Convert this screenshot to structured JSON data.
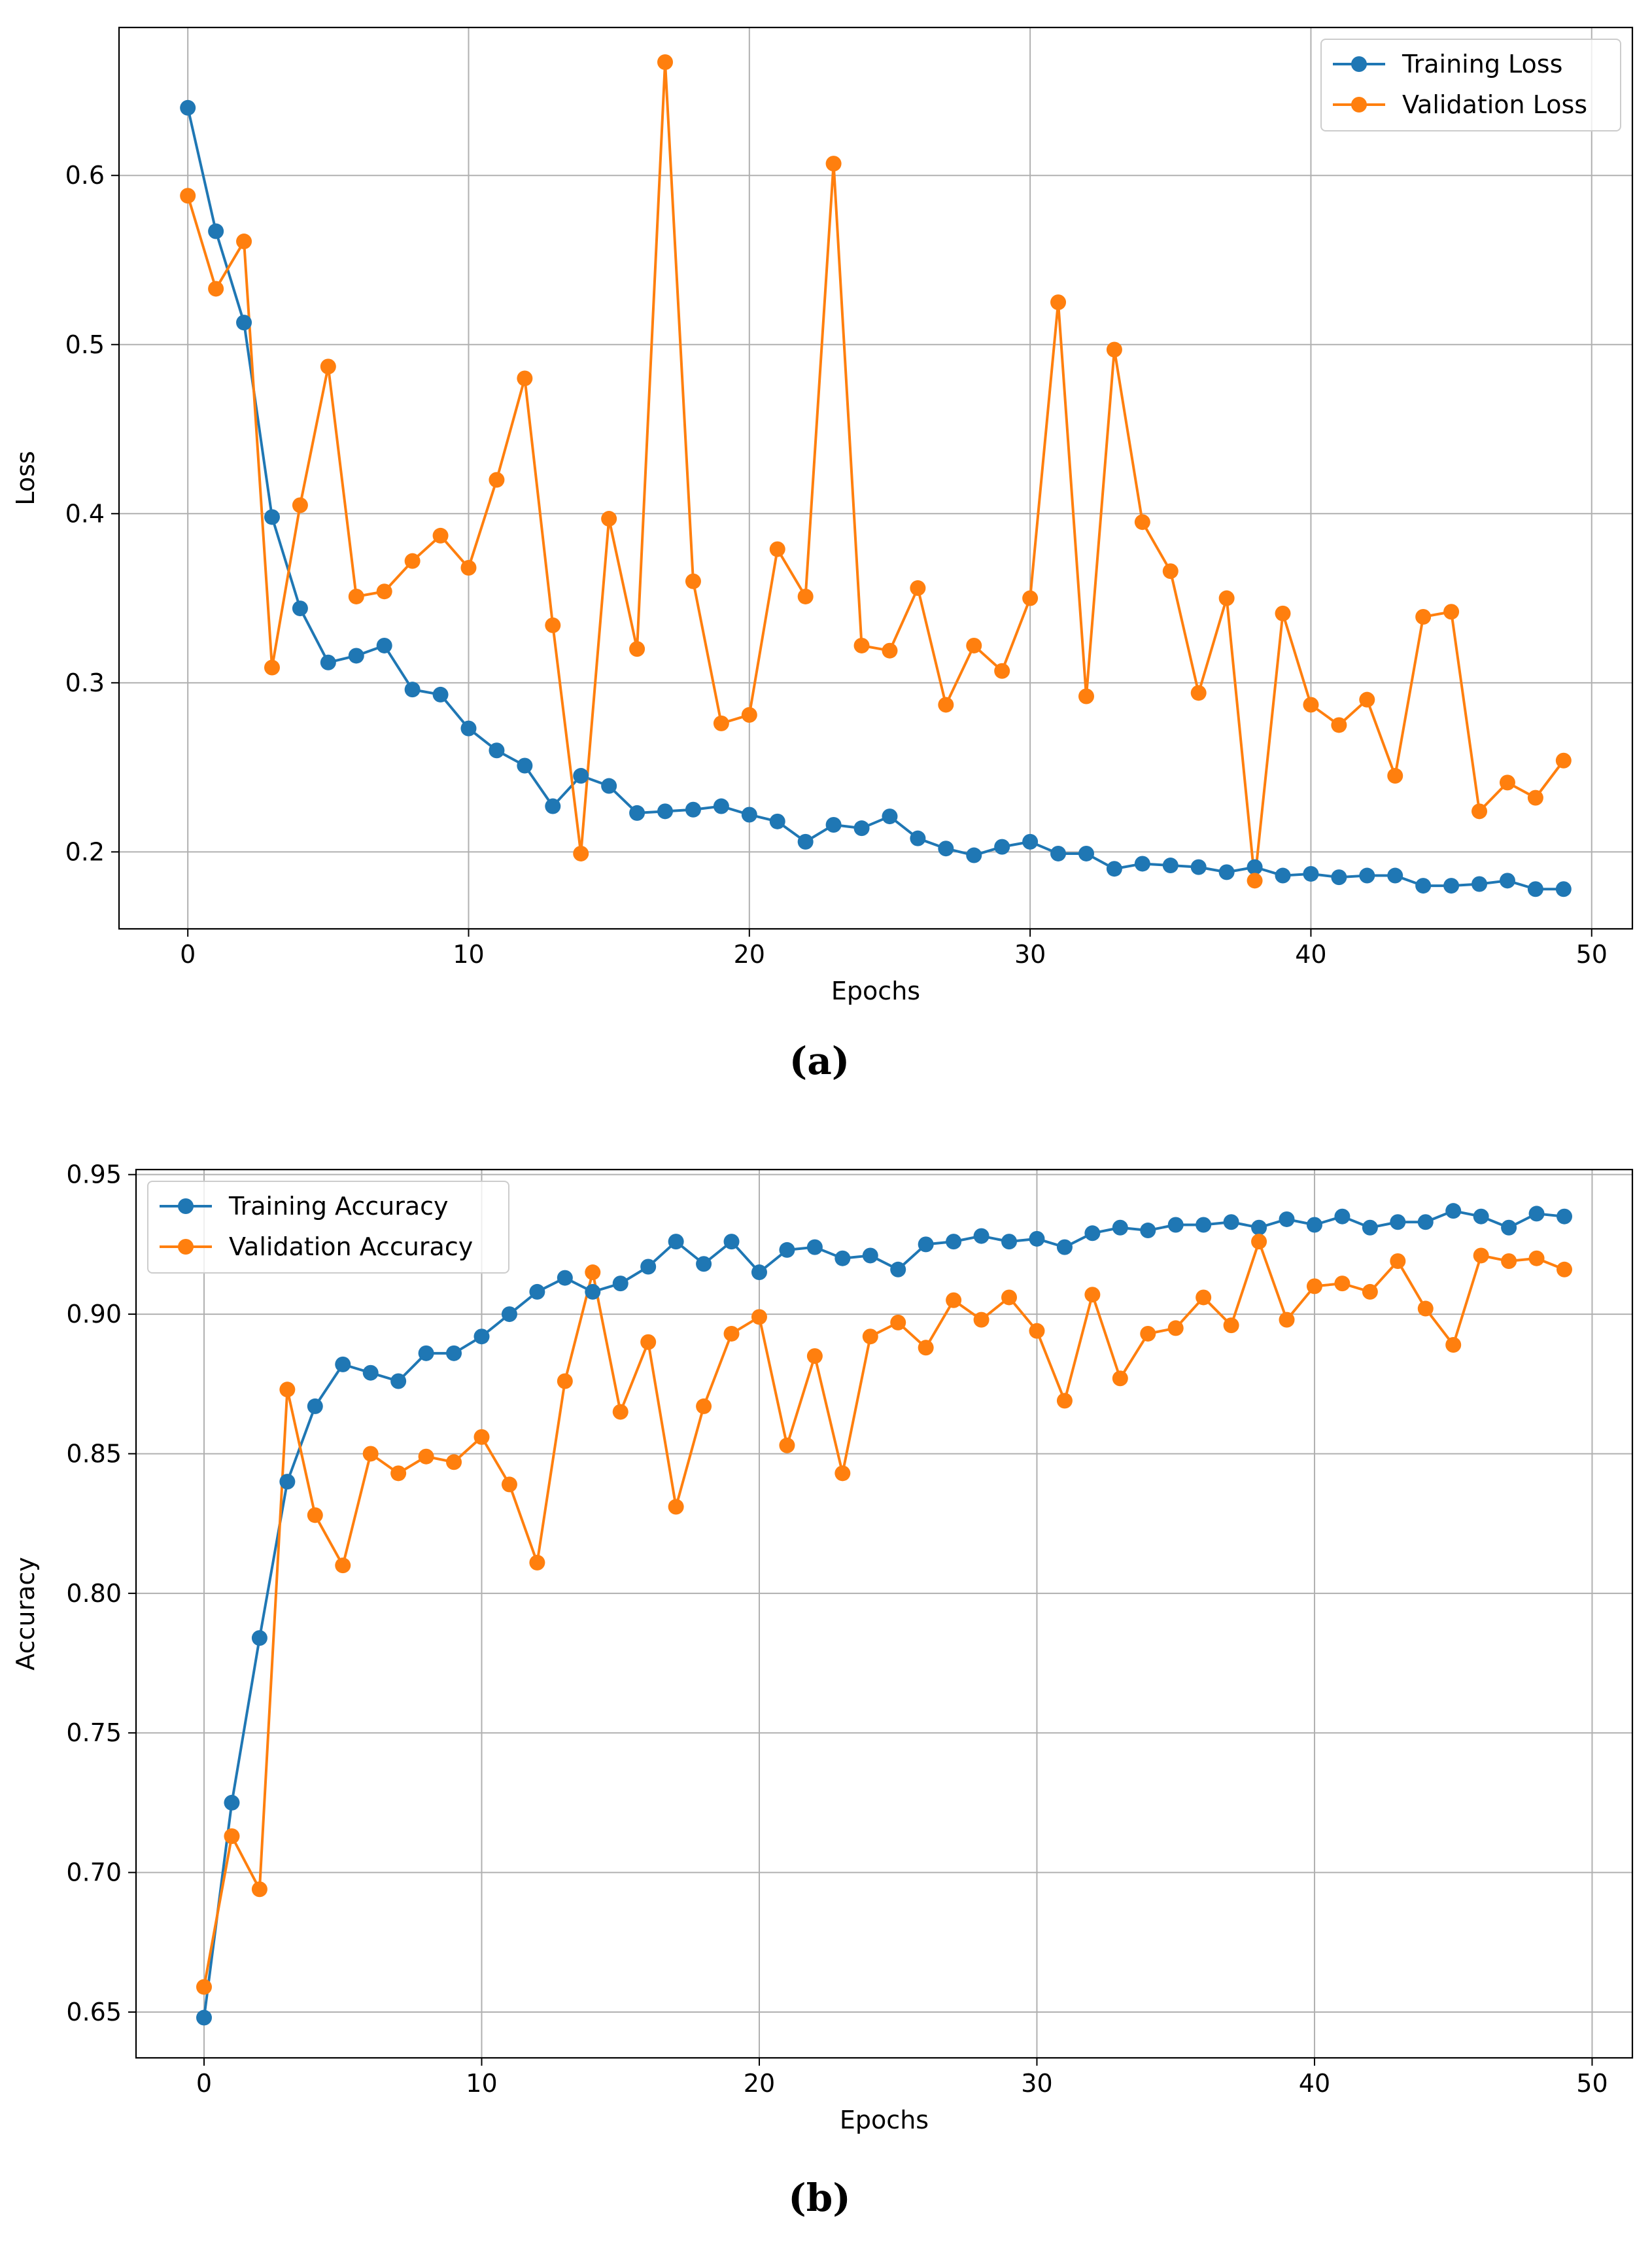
{
  "chart_data": [
    {
      "type": "line",
      "panel_label": "(a)",
      "title": "",
      "xlabel": "Epochs",
      "ylabel": "Loss",
      "xlim": [
        -2.45,
        51.45
      ],
      "ylim": [
        0.1545,
        0.6875
      ],
      "xticks": [
        0,
        10,
        20,
        30,
        40,
        50
      ],
      "xtick_labels": [
        "0",
        "10",
        "20",
        "30",
        "40",
        "50"
      ],
      "yticks": [
        0.2,
        0.3,
        0.4,
        0.5,
        0.6
      ],
      "ytick_labels": [
        "0.2",
        "0.3",
        "0.4",
        "0.5",
        "0.6"
      ],
      "grid": true,
      "legend_position": "top-right",
      "x": [
        0,
        1,
        2,
        3,
        4,
        5,
        6,
        7,
        8,
        9,
        10,
        11,
        12,
        13,
        14,
        15,
        16,
        17,
        18,
        19,
        20,
        21,
        22,
        23,
        24,
        25,
        26,
        27,
        28,
        29,
        30,
        31,
        32,
        33,
        34,
        35,
        36,
        37,
        38,
        39,
        40,
        41,
        42,
        43,
        44,
        45,
        46,
        47,
        48,
        49
      ],
      "series": [
        {
          "name": "Training Loss",
          "color": "#1f77b4",
          "values": [
            0.64,
            0.567,
            0.513,
            0.398,
            0.344,
            0.312,
            0.316,
            0.322,
            0.296,
            0.293,
            0.273,
            0.26,
            0.251,
            0.227,
            0.245,
            0.239,
            0.223,
            0.224,
            0.225,
            0.227,
            0.222,
            0.218,
            0.206,
            0.216,
            0.214,
            0.221,
            0.208,
            0.202,
            0.198,
            0.203,
            0.206,
            0.199,
            0.199,
            0.19,
            0.193,
            0.192,
            0.191,
            0.188,
            0.191,
            0.186,
            0.187,
            0.185,
            0.186,
            0.186,
            0.18,
            0.18,
            0.181,
            0.183,
            0.178,
            0.178
          ]
        },
        {
          "name": "Validation Loss",
          "color": "#ff7f0e",
          "values": [
            0.588,
            0.533,
            0.561,
            0.309,
            0.405,
            0.487,
            0.351,
            0.354,
            0.372,
            0.387,
            0.368,
            0.42,
            0.48,
            0.334,
            0.199,
            0.397,
            0.32,
            0.667,
            0.36,
            0.276,
            0.281,
            0.379,
            0.351,
            0.607,
            0.322,
            0.319,
            0.356,
            0.287,
            0.322,
            0.307,
            0.35,
            0.525,
            0.292,
            0.497,
            0.395,
            0.366,
            0.294,
            0.35,
            0.183,
            0.341,
            0.287,
            0.275,
            0.29,
            0.245,
            0.339,
            0.342,
            0.224,
            0.241,
            0.232,
            0.254
          ]
        }
      ]
    },
    {
      "type": "line",
      "panel_label": "(b)",
      "title": "",
      "xlabel": "Epochs",
      "ylabel": "Accuracy",
      "xlim": [
        -2.45,
        51.45
      ],
      "ylim": [
        0.6336,
        0.9518
      ],
      "xticks": [
        0,
        10,
        20,
        30,
        40,
        50
      ],
      "xtick_labels": [
        "0",
        "10",
        "20",
        "30",
        "40",
        "50"
      ],
      "yticks": [
        0.65,
        0.7,
        0.75,
        0.8,
        0.85,
        0.9,
        0.95
      ],
      "ytick_labels": [
        "0.65",
        "0.70",
        "0.75",
        "0.80",
        "0.85",
        "0.90",
        "0.95"
      ],
      "grid": true,
      "legend_position": "top-left",
      "x": [
        0,
        1,
        2,
        3,
        4,
        5,
        6,
        7,
        8,
        9,
        10,
        11,
        12,
        13,
        14,
        15,
        16,
        17,
        18,
        19,
        20,
        21,
        22,
        23,
        24,
        25,
        26,
        27,
        28,
        29,
        30,
        31,
        32,
        33,
        34,
        35,
        36,
        37,
        38,
        39,
        40,
        41,
        42,
        43,
        44,
        45,
        46,
        47,
        48,
        49
      ],
      "series": [
        {
          "name": "Training Accuracy",
          "color": "#1f77b4",
          "values": [
            0.648,
            0.725,
            0.784,
            0.84,
            0.867,
            0.882,
            0.879,
            0.876,
            0.886,
            0.886,
            0.892,
            0.9,
            0.908,
            0.913,
            0.908,
            0.911,
            0.917,
            0.926,
            0.918,
            0.926,
            0.915,
            0.923,
            0.924,
            0.92,
            0.921,
            0.916,
            0.925,
            0.926,
            0.928,
            0.926,
            0.927,
            0.924,
            0.929,
            0.931,
            0.93,
            0.932,
            0.932,
            0.933,
            0.931,
            0.934,
            0.932,
            0.935,
            0.931,
            0.933,
            0.933,
            0.937,
            0.935,
            0.931,
            0.936,
            0.935
          ]
        },
        {
          "name": "Validation Accuracy",
          "color": "#ff7f0e",
          "values": [
            0.659,
            0.713,
            0.694,
            0.873,
            0.828,
            0.81,
            0.85,
            0.843,
            0.849,
            0.847,
            0.856,
            0.839,
            0.811,
            0.876,
            0.915,
            0.865,
            0.89,
            0.831,
            0.867,
            0.893,
            0.899,
            0.853,
            0.885,
            0.843,
            0.892,
            0.897,
            0.888,
            0.905,
            0.898,
            0.906,
            0.894,
            0.869,
            0.907,
            0.877,
            0.893,
            0.895,
            0.906,
            0.896,
            0.926,
            0.898,
            0.91,
            0.911,
            0.908,
            0.919,
            0.902,
            0.889,
            0.921,
            0.919,
            0.92,
            0.916
          ]
        }
      ]
    }
  ]
}
